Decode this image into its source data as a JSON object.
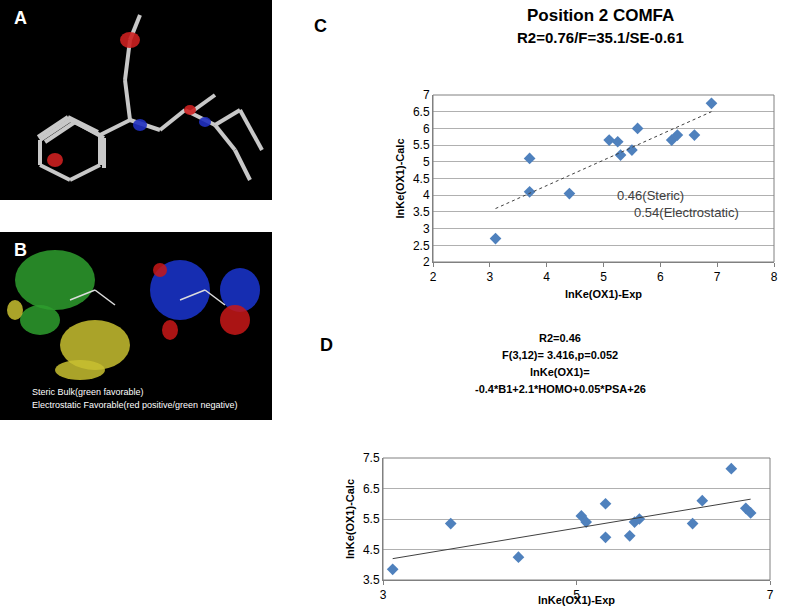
{
  "panels": [
    {
      "label": "A"
    },
    {
      "label": "B",
      "caption": [
        "Steric Bulk(green favorable)",
        "Electrostatic Favorable(red positive/green negative)"
      ]
    }
  ],
  "chart_data": [
    {
      "label": "C",
      "type": "scatter",
      "title": "Position 2 COMFA",
      "subtitle": "R2=0.76/F=35.1/SE-0.61",
      "x_label": "lnKe(OX1)-Exp",
      "y_label": "lnKe(OX1)-Calc",
      "annotations": [
        "0.46(Steric)",
        "0.54(Electrostatic)"
      ],
      "xlim": [
        2,
        8
      ],
      "xticks": [
        2,
        3,
        4,
        5,
        6,
        7,
        8
      ],
      "ylim": [
        2,
        7
      ],
      "yticks": [
        2,
        2.5,
        3,
        3.5,
        4,
        4.5,
        5,
        5.5,
        6,
        6.5,
        7
      ],
      "grid": true,
      "series": [
        {
          "type": "scatter",
          "color": "#4f81bd",
          "marker": "diamond",
          "x": [
            3.1,
            3.7,
            3.7,
            4.4,
            5.1,
            5.25,
            5.3,
            5.5,
            5.6,
            6.2,
            6.3,
            6.6,
            6.9
          ],
          "values": [
            2.7,
            5.1,
            4.1,
            4.05,
            5.65,
            5.6,
            5.2,
            5.35,
            6.0,
            5.65,
            5.8,
            5.8,
            6.75
          ]
        },
        {
          "type": "line",
          "color": "#404040",
          "line_style": "dot",
          "x": [
            3.1,
            6.9
          ],
          "values": [
            3.6,
            6.5
          ]
        }
      ]
    },
    {
      "label": "D",
      "type": "scatter",
      "title": "R2=0.46",
      "subtitle": [
        "F(3,12)= 3.416,p=0.052",
        "lnKe(OX1)=",
        "-0.4*B1+2.1*HOMO+0.05*PSA+26"
      ],
      "x_label": "lnKe(OX1)-Exp",
      "y_label": "lnKe(OX1)-Calc",
      "xlim": [
        3,
        7
      ],
      "xticks": [
        3,
        5,
        7
      ],
      "ylim": [
        3.5,
        7.5
      ],
      "yticks": [
        3.5,
        4.5,
        5.5,
        6.5,
        7.5
      ],
      "grid": true,
      "series": [
        {
          "type": "scatter",
          "color": "#4f81bd",
          "marker": "diamond",
          "x": [
            3.1,
            3.7,
            4.4,
            5.05,
            5.1,
            5.3,
            5.3,
            5.55,
            5.6,
            5.65,
            6.2,
            6.3,
            6.6,
            6.75,
            6.8
          ],
          "values": [
            3.85,
            5.35,
            4.25,
            5.6,
            5.4,
            6.0,
            4.9,
            4.95,
            5.4,
            5.5,
            5.35,
            6.1,
            7.15,
            5.85,
            5.7
          ]
        },
        {
          "type": "line",
          "color": "#404040",
          "line_style": "solid",
          "x": [
            3.1,
            6.8
          ],
          "values": [
            4.2,
            6.15
          ]
        }
      ]
    }
  ]
}
